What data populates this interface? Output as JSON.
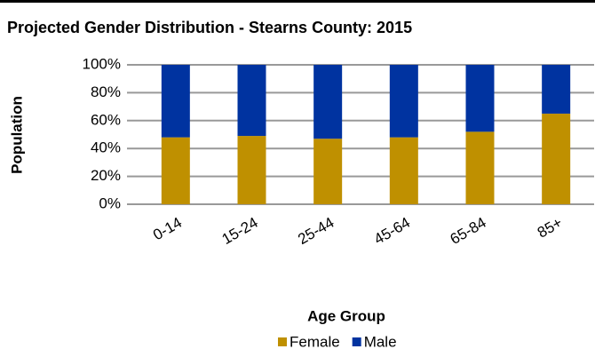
{
  "chart_data": {
    "type": "stacked_bar",
    "title": "Projected Gender Distribution - Stearns County: 2015",
    "x_label": "Age Group",
    "y_label": "Population",
    "categories": [
      "0-14",
      "15-24",
      "25-44",
      "45-64",
      "65-84",
      "85+"
    ],
    "series": [
      {
        "name": "Female",
        "color": "#bf9000",
        "values": [
          48,
          49,
          47,
          48,
          52,
          65
        ]
      },
      {
        "name": "Male",
        "color": "#0033a0",
        "values": [
          52,
          51,
          53,
          52,
          48,
          35
        ]
      }
    ],
    "ylim": [
      0,
      100
    ],
    "yticks": [
      {
        "value": 0,
        "label": "0%"
      },
      {
        "value": 20,
        "label": "20%"
      },
      {
        "value": 40,
        "label": "40%"
      },
      {
        "value": 60,
        "label": "60%"
      },
      {
        "value": 80,
        "label": "80%"
      },
      {
        "value": 100,
        "label": "100%"
      }
    ],
    "grid": true,
    "legend": "bottom"
  }
}
